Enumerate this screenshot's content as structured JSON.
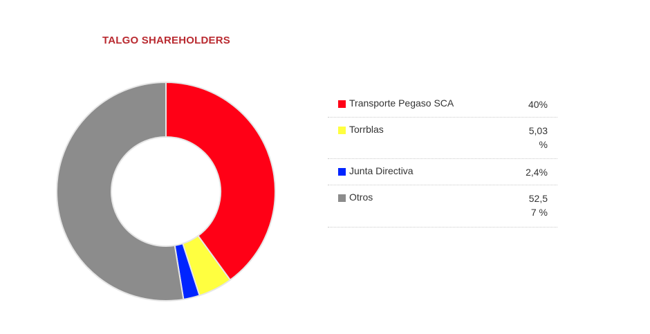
{
  "chart_data": {
    "type": "pie",
    "title": "TALGO SHAREHOLDERS",
    "categories": [
      "Transporte Pegaso SCA",
      "Torrblas",
      "Junta Directiva",
      "Otros"
    ],
    "values": [
      40,
      5.03,
      2.4,
      52.57
    ],
    "value_labels": [
      "40%",
      "5,03 %",
      "2,4%",
      "52,57 %"
    ],
    "colors": [
      "#ff0016",
      "#ffff40",
      "#0024ff",
      "#8c8c8c"
    ],
    "donut": true,
    "legend": "right"
  }
}
